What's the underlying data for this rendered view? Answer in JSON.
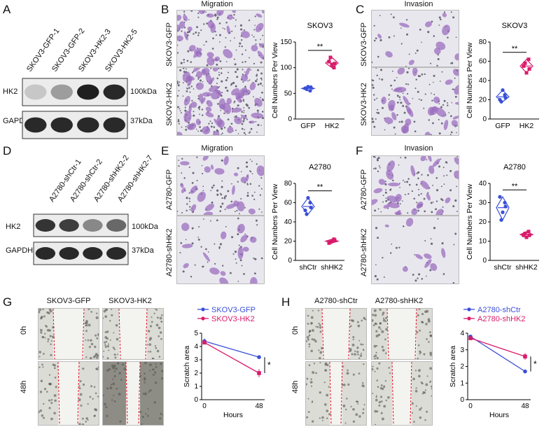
{
  "panels": {
    "A": {
      "letter": "A",
      "lanes": [
        "SKOV3-GFP-1",
        "SKOV3-GFP-2",
        "SKOV3-HK2-3",
        "SKOV3-HK2-5"
      ],
      "rows": [
        {
          "name": "HK2",
          "size": "100kDa",
          "intensity": [
            0.15,
            0.35,
            0.95,
            0.9
          ]
        },
        {
          "name": "GAPDH",
          "size": "37kDa",
          "intensity": [
            0.9,
            0.9,
            0.9,
            0.9
          ]
        }
      ]
    },
    "B": {
      "letter": "B",
      "header": "Migration",
      "row_labels": [
        "SKOV3-GFP",
        "SKOV3-HK2"
      ],
      "chart": {
        "title": "SKOV3",
        "ylabel": "Cell Numbers Per View",
        "ylim": [
          0,
          150
        ],
        "yticks": [
          "0",
          "50",
          "100",
          "150"
        ],
        "sig": "**",
        "categories": [
          "GFP",
          "HK2"
        ],
        "values": [
          [
            60,
            55,
            63,
            58,
            62
          ],
          [
            112,
            100,
            105,
            120,
            108
          ]
        ],
        "colors": [
          "#3a4fd8",
          "#d81b6a"
        ]
      }
    },
    "C": {
      "letter": "C",
      "header": "Invasion",
      "row_labels": [
        "SKOV3-GFP",
        "SKOV3-HK2"
      ],
      "chart": {
        "title": "SKOV3",
        "ylabel": "Cell Numbers Per View",
        "ylim": [
          0,
          80
        ],
        "yticks": [
          "0",
          "20",
          "40",
          "60",
          "80"
        ],
        "sig": "**",
        "categories": [
          "GFP",
          "HK2"
        ],
        "values": [
          [
            20,
            25,
            30,
            18,
            22
          ],
          [
            55,
            62,
            48,
            58,
            52
          ]
        ],
        "colors": [
          "#3a4fd8",
          "#d81b6a"
        ]
      }
    },
    "D": {
      "letter": "D",
      "lanes": [
        "A2780-shCtr-1",
        "A2780-shCtr-2",
        "A2780-shHK2-2",
        "A2780-shHK2-7"
      ],
      "rows": [
        {
          "name": "HK2",
          "size": "100kDa",
          "intensity": [
            0.85,
            0.8,
            0.45,
            0.6
          ]
        },
        {
          "name": "GAPDH",
          "size": "37kDa",
          "intensity": [
            0.9,
            0.9,
            0.9,
            0.9
          ]
        }
      ]
    },
    "E": {
      "letter": "E",
      "header": "Migration",
      "row_labels": [
        "A2780-GFP",
        "A2780-shHK2"
      ],
      "chart": {
        "title": "A2780",
        "ylabel": "Cell Numbers Per View",
        "ylim": [
          0,
          80
        ],
        "yticks": [
          "0",
          "20",
          "40",
          "60",
          "80"
        ],
        "sig": "**",
        "categories": [
          "shCtr",
          "shHK2"
        ],
        "values": [
          [
            52,
            60,
            65,
            48,
            55
          ],
          [
            18,
            22,
            20,
            19,
            21
          ]
        ],
        "colors": [
          "#3a4fd8",
          "#d81b6a"
        ]
      }
    },
    "F": {
      "letter": "F",
      "header": "Invasion",
      "row_labels": [
        "A2780-GFP",
        "A2780-shHK2"
      ],
      "chart": {
        "title": "A2780",
        "ylabel": "Cell Numbers Per View",
        "ylim": [
          0,
          40
        ],
        "yticks": [
          "0",
          "10",
          "20",
          "30",
          "40"
        ],
        "sig": "**",
        "categories": [
          "shCtr",
          "shHK2"
        ],
        "values": [
          [
            33,
            30,
            25,
            21,
            28
          ],
          [
            13,
            15,
            12,
            14,
            13
          ]
        ],
        "colors": [
          "#3a4fd8",
          "#d81b6a"
        ]
      }
    },
    "G": {
      "letter": "G",
      "col_labels": [
        "SKOV3-GFP",
        "SKOV3-HK2"
      ],
      "row_labels": [
        "0h",
        "48h"
      ],
      "chart": {
        "ylabel": "Scratch area",
        "xlabel": "Hours",
        "ylim": [
          0,
          5
        ],
        "yticks": [
          "0",
          "1",
          "2",
          "3",
          "4",
          "5"
        ],
        "xticks": [
          "0",
          "48"
        ],
        "sig": "*",
        "series": [
          {
            "name": "SKOV3-GFP",
            "color": "#3a4fd8",
            "values": [
              4.4,
              3.2
            ],
            "err": [
              0.2,
              0.1
            ]
          },
          {
            "name": "SKOV3-HK2",
            "color": "#d81b6a",
            "values": [
              4.3,
              2.0
            ],
            "err": [
              0.1,
              0.3
            ]
          }
        ]
      }
    },
    "H": {
      "letter": "H",
      "col_labels": [
        "A2780-shCtr",
        "A2780-shHK2"
      ],
      "row_labels": [
        "0h",
        "48h"
      ],
      "chart": {
        "ylabel": "Scratch area",
        "xlabel": "Hours",
        "ylim": [
          0,
          4
        ],
        "yticks": [
          "0",
          "1",
          "2",
          "3",
          "4"
        ],
        "xticks": [
          "0",
          "48"
        ],
        "sig": "*",
        "series": [
          {
            "name": "A2780-shCtr",
            "color": "#3a4fd8",
            "values": [
              3.8,
              1.7
            ],
            "err": [
              0.1,
              0.1
            ]
          },
          {
            "name": "A2780-shHK2",
            "color": "#d81b6a",
            "values": [
              3.7,
              2.6
            ],
            "err": [
              0.1,
              0.2
            ]
          }
        ]
      }
    }
  },
  "chart_data": [
    {
      "type": "scatter",
      "title": "SKOV3",
      "ylabel": "Cell Numbers Per View",
      "categories": [
        "GFP",
        "HK2"
      ],
      "ylim": [
        0,
        150
      ],
      "series": [
        {
          "values": [
            60,
            55,
            63,
            58,
            62
          ]
        },
        {
          "values": [
            112,
            100,
            105,
            120,
            108
          ]
        }
      ]
    },
    {
      "type": "scatter",
      "title": "SKOV3",
      "ylabel": "Cell Numbers Per View",
      "categories": [
        "GFP",
        "HK2"
      ],
      "ylim": [
        0,
        80
      ],
      "series": [
        {
          "values": [
            20,
            25,
            30,
            18,
            22
          ]
        },
        {
          "values": [
            55,
            62,
            48,
            58,
            52
          ]
        }
      ]
    },
    {
      "type": "scatter",
      "title": "A2780",
      "ylabel": "Cell Numbers Per View",
      "categories": [
        "shCtr",
        "shHK2"
      ],
      "ylim": [
        0,
        80
      ],
      "series": [
        {
          "values": [
            52,
            60,
            65,
            48,
            55
          ]
        },
        {
          "values": [
            18,
            22,
            20,
            19,
            21
          ]
        }
      ]
    },
    {
      "type": "scatter",
      "title": "A2780",
      "ylabel": "Cell Numbers Per View",
      "categories": [
        "shCtr",
        "shHK2"
      ],
      "ylim": [
        0,
        40
      ],
      "series": [
        {
          "values": [
            33,
            30,
            25,
            21,
            28
          ]
        },
        {
          "values": [
            13,
            15,
            12,
            14,
            13
          ]
        }
      ]
    },
    {
      "type": "line",
      "xlabel": "Hours",
      "ylabel": "Scratch area",
      "x": [
        0,
        48
      ],
      "ylim": [
        0,
        5
      ],
      "series": [
        {
          "name": "SKOV3-GFP",
          "values": [
            4.4,
            3.2
          ]
        },
        {
          "name": "SKOV3-HK2",
          "values": [
            4.3,
            2.0
          ]
        }
      ]
    },
    {
      "type": "line",
      "xlabel": "Hours",
      "ylabel": "Scratch area",
      "x": [
        0,
        48
      ],
      "ylim": [
        0,
        4
      ],
      "series": [
        {
          "name": "A2780-shCtr",
          "values": [
            3.8,
            1.7
          ]
        },
        {
          "name": "A2780-shHK2",
          "values": [
            3.7,
            2.6
          ]
        }
      ]
    }
  ]
}
